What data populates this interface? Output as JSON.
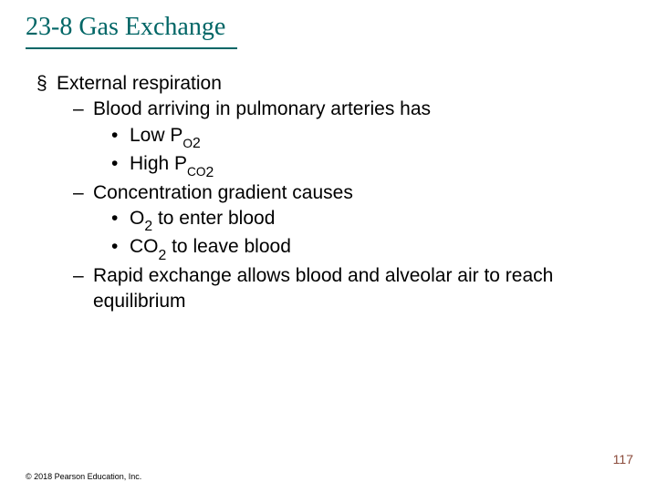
{
  "title": "23-8 Gas Exchange",
  "title_color": "#006666",
  "title_fontsize": 28,
  "underline_color": "#006666",
  "body_fontsize": 21,
  "body_color": "#000000",
  "background_color": "#ffffff",
  "bullets": {
    "lvl1_1": "External respiration",
    "lvl2_1": "Blood arriving in pulmonary arteries has",
    "lvl3_1_prefix": "Low P",
    "lvl3_1_sub": "O",
    "lvl3_1_sub2": "2",
    "lvl3_2_prefix": "High P",
    "lvl3_2_sub": "CO",
    "lvl3_2_sub2": "2",
    "lvl2_2": "Concentration gradient causes",
    "lvl3_3_prefix": "O",
    "lvl3_3_sub": "2",
    "lvl3_3_suffix": " to enter blood",
    "lvl3_4_prefix": "CO",
    "lvl3_4_sub": "2",
    "lvl3_4_suffix": " to leave blood",
    "lvl2_3": "Rapid exchange allows blood and alveolar air to reach equilibrium"
  },
  "footer": "© 2018 Pearson Education, Inc.",
  "page_number": "117",
  "page_number_color": "#8a4a3a"
}
